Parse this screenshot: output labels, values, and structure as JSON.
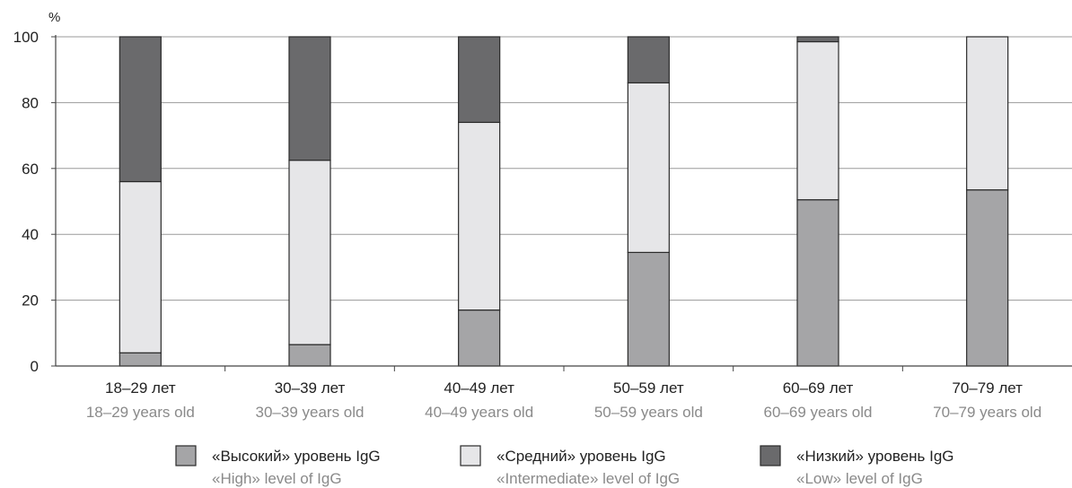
{
  "chart_data": {
    "type": "bar",
    "stacked": true,
    "y_unit_label": "%",
    "ylim": [
      0,
      100
    ],
    "y_ticks": [
      0,
      20,
      40,
      60,
      80,
      100
    ],
    "grid": true,
    "legend_position": "bottom",
    "categories": [
      {
        "ru": "18–29 лет",
        "en": "18–29 years old"
      },
      {
        "ru": "30–39 лет",
        "en": "30–39 years old"
      },
      {
        "ru": "40–49 лет",
        "en": "40–49 years old"
      },
      {
        "ru": "50–59 лет",
        "en": "50–59 years old"
      },
      {
        "ru": "60–69 лет",
        "en": "60–69 years old"
      },
      {
        "ru": "70–79 лет",
        "en": "70–79 years old"
      }
    ],
    "series": [
      {
        "name_ru": "«Высокий» уровень IgG",
        "name_en": "«High» level of IgG",
        "color": "#a5a5a7",
        "values": [
          4,
          6.5,
          17,
          34.5,
          50.5,
          53.5
        ]
      },
      {
        "name_ru": "«Средний» уровень IgG",
        "name_en": "«Intermediate» level of IgG",
        "color": "#e6e6e8",
        "values": [
          52,
          56,
          57,
          51.5,
          48,
          46.5
        ]
      },
      {
        "name_ru": "«Низкий» уровень IgG",
        "name_en": "«Low» level of IgG",
        "color": "#6a6a6c",
        "values": [
          44,
          37.5,
          26,
          14,
          1.5,
          0
        ]
      }
    ]
  }
}
